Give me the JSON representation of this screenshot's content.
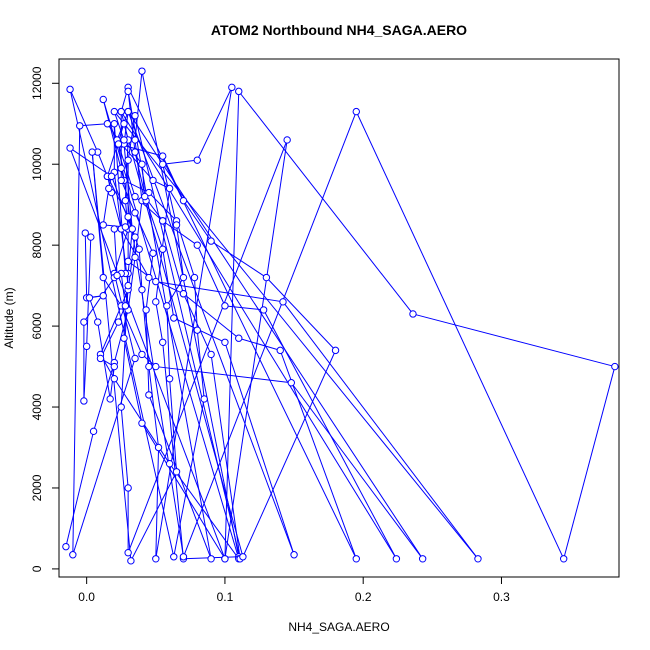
{
  "chart_data": {
    "type": "scatter",
    "title": "ATOM2 Northbound NH4_SAGA.AERO",
    "xlabel": "NH4_SAGA.AERO",
    "ylabel": "Altitude (m)",
    "xlim": [
      -0.02,
      0.385
    ],
    "ylim": [
      -200,
      12600
    ],
    "x_ticks": [
      0.0,
      0.1,
      0.2,
      0.3
    ],
    "x_tick_labels": [
      "0.0",
      "0.1",
      "0.2",
      "0.3"
    ],
    "y_ticks": [
      0,
      2000,
      4000,
      6000,
      8000,
      10000,
      12000
    ],
    "y_tick_labels": [
      "0",
      "2000",
      "4000",
      "6000",
      "8000",
      "10000",
      "12000"
    ],
    "grid": false,
    "legend": "none",
    "style": "line with open circle markers (type o)",
    "series": [
      {
        "color": "#0000ff",
        "points": [
          [
            -0.015,
            550
          ],
          [
            0.005,
            3400
          ],
          [
            0.02,
            5100
          ],
          [
            0.03,
            6400
          ],
          [
            0.035,
            7700
          ],
          [
            0.04,
            9100
          ],
          [
            0.035,
            10600
          ],
          [
            0.04,
            12300
          ],
          [
            0.11,
            300
          ],
          [
            0.07,
            250
          ],
          [
            0.055,
            5600
          ],
          [
            0.05,
            6600
          ],
          [
            0.06,
            9400
          ],
          [
            0.048,
            9600
          ],
          [
            0.025,
            10500
          ],
          [
            0.015,
            11000
          ],
          [
            -0.005,
            10950
          ],
          [
            -0.01,
            350
          ],
          [
            0.035,
            5200
          ],
          [
            0.02,
            7300
          ],
          [
            0.03,
            8400
          ],
          [
            0.028,
            9100
          ],
          [
            0.03,
            10600
          ],
          [
            0.025,
            11300
          ],
          [
            0.03,
            11900
          ],
          [
            0.195,
            250
          ],
          [
            0.14,
            5400
          ],
          [
            0.11,
            5700
          ],
          [
            0.07,
            6800
          ],
          [
            0.045,
            7200
          ],
          [
            0.025,
            8400
          ],
          [
            0.018,
            9300
          ],
          [
            0.015,
            9700
          ],
          [
            0.008,
            10300
          ],
          [
            -0.012,
            11850
          ],
          [
            0.063,
            300
          ],
          [
            0.085,
            4200
          ],
          [
            0.08,
            5900
          ],
          [
            0.078,
            7200
          ],
          [
            0.065,
            8600
          ],
          [
            0.045,
            9300
          ],
          [
            0.027,
            9600
          ],
          [
            0.012,
            11600
          ],
          [
            0.11,
            250
          ],
          [
            0.06,
            2600
          ],
          [
            0.02,
            4700
          ],
          [
            0.01,
            5300
          ],
          [
            0.03,
            6900
          ],
          [
            0.035,
            8200
          ],
          [
            0.018,
            9700
          ],
          [
            -0.012,
            10400
          ],
          [
            0.1,
            250
          ],
          [
            0.04,
            3600
          ],
          [
            0.027,
            5700
          ],
          [
            0.03,
            7300
          ],
          [
            0.033,
            8400
          ],
          [
            0.027,
            10500
          ],
          [
            0.03,
            11300
          ],
          [
            0.15,
            350
          ],
          [
            0.1,
            5600
          ],
          [
            0.063,
            6200
          ],
          [
            0.055,
            7900
          ],
          [
            0.043,
            9100
          ],
          [
            0.035,
            10300
          ],
          [
            0.03,
            11800
          ],
          [
            0.09,
            250
          ],
          [
            0.045,
            4300
          ],
          [
            0.043,
            6400
          ],
          [
            0.048,
            7800
          ],
          [
            0.035,
            8800
          ],
          [
            0.025,
            9600
          ],
          [
            0.025,
            11300
          ],
          [
            0.224,
            250
          ],
          [
            0.128,
            6400
          ],
          [
            0.1,
            6500
          ],
          [
            0.08,
            8000
          ],
          [
            0.055,
            8600
          ],
          [
            0.035,
            9200
          ],
          [
            0.022,
            10600
          ],
          [
            0.03,
            11300
          ],
          [
            0.243,
            250
          ],
          [
            0.148,
            4600
          ],
          [
            0.05,
            5000
          ],
          [
            0.04,
            5300
          ],
          [
            0.025,
            6500
          ],
          [
            0.012,
            7200
          ],
          [
            0.004,
            10300
          ],
          [
            0.032,
            200
          ],
          [
            0.065,
            2400
          ],
          [
            0.06,
            4700
          ],
          [
            0.058,
            6500
          ],
          [
            0.07,
            7200
          ],
          [
            0.065,
            8500
          ],
          [
            0.055,
            10000
          ],
          [
            0.08,
            10100
          ],
          [
            0.105,
            11900
          ],
          [
            0.05,
            250
          ],
          [
            0.052,
            3000
          ],
          [
            0.045,
            5000
          ],
          [
            0.04,
            6900
          ],
          [
            0.038,
            7900
          ],
          [
            0.03,
            8700
          ],
          [
            0.03,
            10100
          ],
          [
            0.035,
            11200
          ],
          [
            0.111,
            250
          ],
          [
            0.09,
            5300
          ],
          [
            0.07,
            6800
          ],
          [
            0.055,
            8600
          ],
          [
            0.042,
            9200
          ],
          [
            0.04,
            10000
          ],
          [
            0.027,
            10600
          ],
          [
            0.02,
            11300
          ],
          [
            0.283,
            250
          ],
          [
            0.142,
            6600
          ],
          [
            0.05,
            7100
          ],
          [
            0.03,
            7600
          ],
          [
            0.03,
            8700
          ],
          [
            0.015,
            9700
          ],
          [
            0.027,
            11000
          ],
          [
            0.113,
            300
          ],
          [
            0.18,
            5400
          ],
          [
            0.13,
            7200
          ],
          [
            0.09,
            8100
          ],
          [
            0.07,
            9100
          ],
          [
            0.055,
            10200
          ],
          [
            0.023,
            10500
          ],
          [
            0.07,
            300
          ],
          [
            0.195,
            11300
          ],
          [
            0.345,
            250
          ],
          [
            0.382,
            5000
          ],
          [
            0.236,
            6300
          ],
          [
            0.11,
            11800
          ],
          [
            0.1,
            250
          ],
          [
            0.145,
            10600
          ],
          [
            0.03,
            400
          ],
          [
            0.03,
            2000
          ],
          [
            0.025,
            4000
          ],
          [
            0.03,
            7000
          ],
          [
            0.02,
            9800
          ],
          [
            0.02,
            11000
          ],
          [
            0.028,
            7300
          ],
          [
            0.02,
            7200
          ],
          [
            -0.002,
            6100
          ],
          [
            -0.002,
            4150
          ],
          [
            0.0,
            5500
          ],
          [
            0.003,
            8200
          ],
          [
            -0.001,
            8300
          ],
          [
            0.0,
            6700
          ],
          [
            0.012,
            6750
          ],
          [
            0.002,
            6700
          ],
          [
            0.008,
            6100
          ],
          [
            0.017,
            4200
          ],
          [
            0.02,
            5000
          ],
          [
            0.01,
            5200
          ],
          [
            0.023,
            6100
          ],
          [
            0.028,
            6500
          ],
          [
            0.025,
            7300
          ],
          [
            0.022,
            7250
          ],
          [
            0.02,
            8400
          ],
          [
            0.028,
            8450
          ],
          [
            0.012,
            8500
          ],
          [
            0.016,
            9400
          ],
          [
            0.018,
            9700
          ],
          [
            0.025,
            9900
          ]
        ]
      }
    ]
  }
}
